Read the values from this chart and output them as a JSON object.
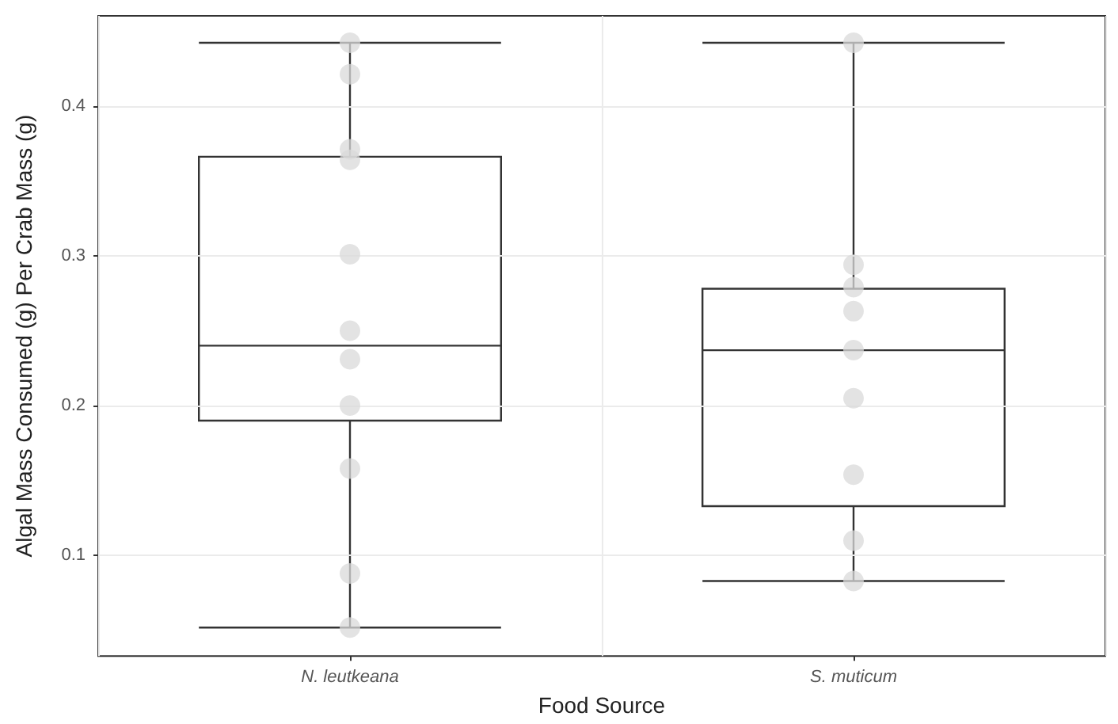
{
  "chart_data": {
    "type": "box",
    "xlabel": "Food Source",
    "ylabel": "Algal Mass Consumed (g) Per Crab Mass (g)",
    "categories": [
      "N. leutkeana",
      "S. muticum"
    ],
    "series": [
      {
        "color": "#333333",
        "boxes": [
          {
            "low": 0.052,
            "q1": 0.19,
            "median": 0.24,
            "q3": 0.366,
            "high": 0.442
          },
          {
            "low": 0.083,
            "q1": 0.133,
            "median": 0.237,
            "q3": 0.278,
            "high": 0.442
          }
        ]
      },
      {
        "type": "scatter",
        "color": "#d9d9d9",
        "x": [
          "N. leutkeana",
          "N. leutkeana",
          "N. leutkeana",
          "N. leutkeana",
          "N. leutkeana",
          "N. leutkeana",
          "N. leutkeana",
          "N. leutkeana",
          "N. leutkeana",
          "N. leutkeana",
          "N. leutkeana",
          "S. muticum",
          "S. muticum",
          "S. muticum",
          "S. muticum",
          "S. muticum",
          "S. muticum",
          "S. muticum",
          "S. muticum",
          "S. muticum"
        ],
        "values": [
          0.442,
          0.421,
          0.371,
          0.364,
          0.301,
          0.25,
          0.231,
          0.2,
          0.158,
          0.088,
          0.052,
          0.442,
          0.294,
          0.279,
          0.263,
          0.237,
          0.205,
          0.154,
          0.11,
          0.083
        ]
      }
    ],
    "ylim": [
      0.033,
      0.46
    ],
    "yticks": [
      0.1,
      0.2,
      0.3,
      0.4
    ],
    "grid": true,
    "marker": "circle"
  }
}
